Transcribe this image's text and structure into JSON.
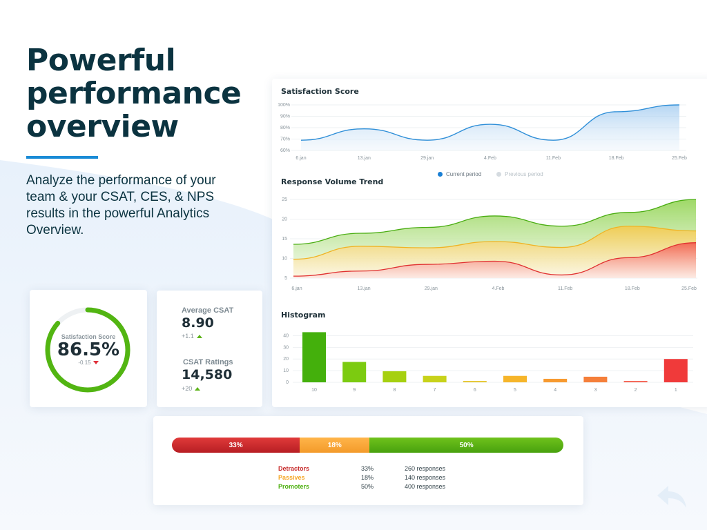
{
  "hero": {
    "title": "Powerful performance overview",
    "subtitle": "Analyze the performance of your team & your CSAT, CES, & NPS results in the powerful Analytics Overview."
  },
  "colors": {
    "accent": "#1a8bd6",
    "heading": "#0b3340",
    "green": "#4caf0f",
    "orange": "#f5a623",
    "red": "#e53935"
  },
  "satisfaction_chart": {
    "title": "Satisfaction Score",
    "legend": {
      "current": "Current period",
      "previous": "Previous period"
    }
  },
  "volume_chart": {
    "title": "Response Volume Trend"
  },
  "histogram_chart": {
    "title": "Histogram"
  },
  "chart_data": [
    {
      "type": "area",
      "title": "Satisfaction Score",
      "categories": [
        "6.jan",
        "13.jan",
        "29.jan",
        "4.Feb",
        "11.Feb",
        "18.Feb",
        "25.Feb"
      ],
      "y_ticks": [
        "100%",
        "90%",
        "80%",
        "70%",
        "60%"
      ],
      "ylim": [
        60,
        100
      ],
      "series": [
        {
          "name": "Current period",
          "values": [
            69,
            79,
            69,
            83,
            69,
            94,
            100
          ]
        }
      ],
      "legend": [
        "Current period",
        "Previous period"
      ]
    },
    {
      "type": "area",
      "title": "Response Volume Trend",
      "categories": [
        "6.jan",
        "13.jan",
        "29.jan",
        "4.Feb",
        "11.Feb",
        "18.Feb",
        "25.Feb"
      ],
      "y_ticks": [
        "25",
        "20",
        "15",
        "10",
        "5"
      ],
      "ylim": [
        5,
        25
      ],
      "series": [
        {
          "name": "Green",
          "values": [
            13.6,
            16.4,
            17.9,
            20.8,
            18.2,
            21.7,
            25.0
          ]
        },
        {
          "name": "Orange",
          "values": [
            9.8,
            13.1,
            12.7,
            14.3,
            12.8,
            18.2,
            17.0
          ]
        },
        {
          "name": "Red",
          "values": [
            5.5,
            6.8,
            8.5,
            9.3,
            5.8,
            10.2,
            14.0
          ]
        }
      ]
    },
    {
      "type": "bar",
      "title": "Histogram",
      "categories": [
        "10",
        "9",
        "8",
        "7",
        "6",
        "5",
        "4",
        "3",
        "2",
        "1"
      ],
      "values": [
        43,
        17.5,
        9.5,
        5.5,
        1.2,
        5.5,
        3,
        4.8,
        1.2,
        20
      ],
      "y_ticks": [
        "40",
        "30",
        "20",
        "10",
        "0"
      ],
      "ylim": [
        0,
        45
      ]
    }
  ],
  "gauge": {
    "label": "Satisfaction Score",
    "value": "86.5%",
    "fraction": 0.865,
    "delta": "-0.15"
  },
  "stats": {
    "avg_csat": {
      "label": "Average CSAT",
      "value": "8.90",
      "delta": "+1.1"
    },
    "ratings": {
      "label": "CSAT Ratings",
      "value": "14,580",
      "delta": "+20"
    }
  },
  "nps": {
    "bar": [
      {
        "label": "33%",
        "fraction": 33
      },
      {
        "label": "18%",
        "fraction": 18
      },
      {
        "label": "50%",
        "fraction": 50
      }
    ],
    "rows": [
      {
        "name": "Detractors",
        "percent": "33%",
        "responses": "260 responses",
        "color": "#c62828"
      },
      {
        "name": "Passives",
        "percent": "18%",
        "responses": "140 responses",
        "color": "#f5a623"
      },
      {
        "name": "Promoters",
        "percent": "50%",
        "responses": "400 responses",
        "color": "#4caf0f"
      }
    ]
  }
}
